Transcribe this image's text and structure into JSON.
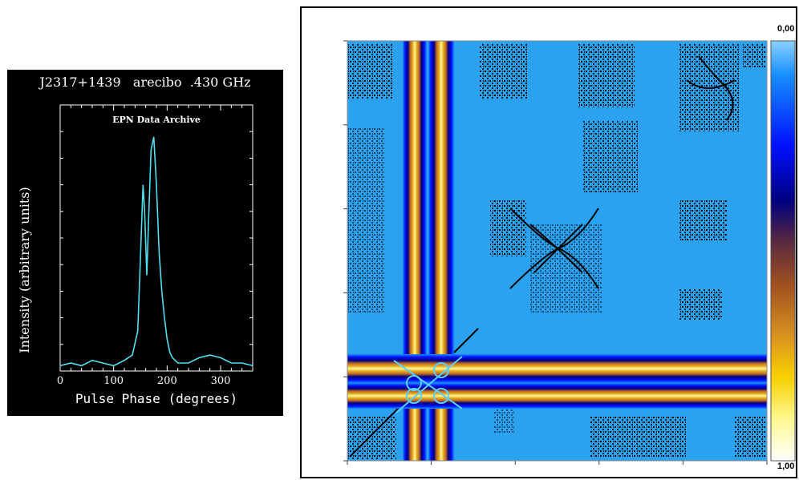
{
  "chart_data": [
    {
      "type": "line",
      "title": "J2317+1439   arecibo  .430 GHz",
      "subtitle": "EPN Data Archive",
      "xlabel": "Pulse Phase (degrees)",
      "ylabel": "Intensity (arbitrary units)",
      "xlim": [
        0,
        360
      ],
      "ylim": [
        0,
        1.0
      ],
      "xticks": [
        "0",
        "100",
        "200",
        "300"
      ],
      "series": [
        {
          "color": "#4fe0f0",
          "x": [
            0,
            20,
            40,
            60,
            80,
            100,
            120,
            135,
            145,
            150,
            155,
            158,
            162,
            165,
            170,
            175,
            180,
            185,
            190,
            195,
            200,
            205,
            210,
            220,
            240,
            260,
            280,
            300,
            320,
            340,
            360
          ],
          "y": [
            0.02,
            0.03,
            0.02,
            0.04,
            0.03,
            0.02,
            0.04,
            0.06,
            0.15,
            0.42,
            0.7,
            0.6,
            0.36,
            0.55,
            0.83,
            0.88,
            0.7,
            0.45,
            0.3,
            0.2,
            0.12,
            0.07,
            0.05,
            0.03,
            0.03,
            0.05,
            0.06,
            0.05,
            0.03,
            0.03,
            0.02
          ]
        }
      ]
    },
    {
      "type": "heatmap",
      "colorbar": {
        "min_label": "0,00",
        "max_label": "1,00"
      },
      "colorscale": [
        "#00007f",
        "#0010ff",
        "#1890ff",
        "#4ab2f0",
        "#8a3a10",
        "#c06a20",
        "#e8b020",
        "#ffe020",
        "#fff8a0",
        "#ffffff"
      ]
    }
  ]
}
